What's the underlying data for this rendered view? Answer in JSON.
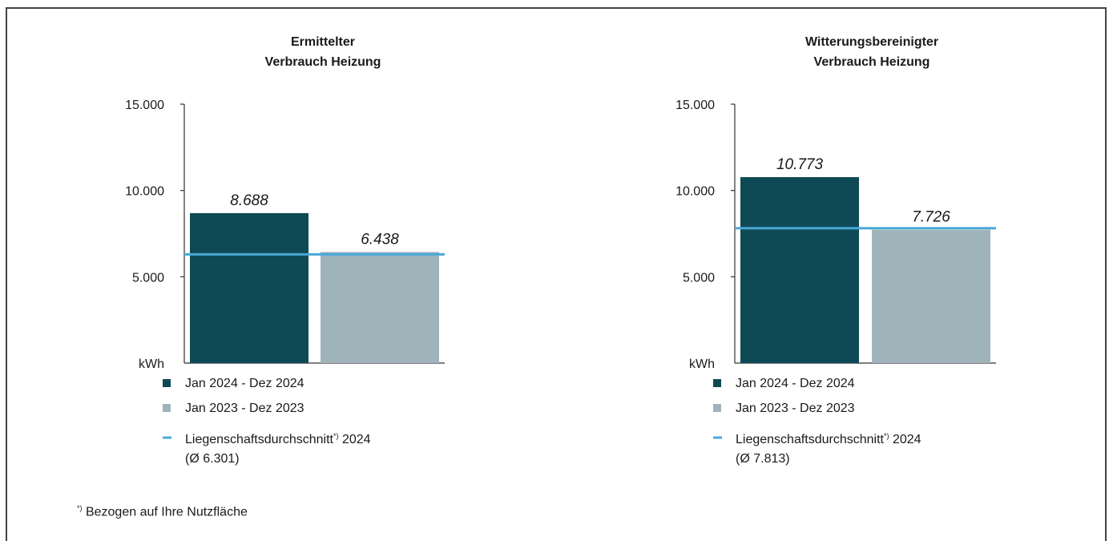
{
  "chart_data": [
    {
      "type": "bar",
      "title_lines": [
        "Ermittelter",
        "Verbrauch Heizung"
      ],
      "ylabel": "kWh",
      "yticks": [
        "15.000",
        "10.000",
        "5.000"
      ],
      "ylim": [
        0,
        15000
      ],
      "categories": [
        "Jan 2024 - Dez 2024",
        "Jan 2023 - Dez 2023"
      ],
      "values": [
        8688,
        6438
      ],
      "value_labels": [
        "8.688",
        "6.438"
      ],
      "colors": [
        "#0e4a56",
        "#9fb4ba"
      ],
      "average": {
        "value": 6301,
        "label": "Liegenschaftsdurchschnitt*) 2024",
        "sublabel": "(Ø 6.301)",
        "color": "#4aa8d8"
      }
    },
    {
      "type": "bar",
      "title_lines": [
        "Witterungsbereinigter",
        "Verbrauch Heizung"
      ],
      "ylabel": "kWh",
      "yticks": [
        "15.000",
        "10.000",
        "5.000"
      ],
      "ylim": [
        0,
        15000
      ],
      "categories": [
        "Jan 2024 - Dez 2024",
        "Jan 2023 - Dez 2023"
      ],
      "values": [
        10773,
        7726
      ],
      "value_labels": [
        "10.773",
        "7.726"
      ],
      "colors": [
        "#0e4a56",
        "#9fb4ba"
      ],
      "average": {
        "value": 7813,
        "label": "Liegenschaftsdurchschnitt*) 2024",
        "sublabel": "(Ø 7.813)",
        "color": "#4aa8d8"
      }
    }
  ],
  "footnote": {
    "marker": "*)",
    "text": "Bezogen auf Ihre Nutzfläche"
  }
}
